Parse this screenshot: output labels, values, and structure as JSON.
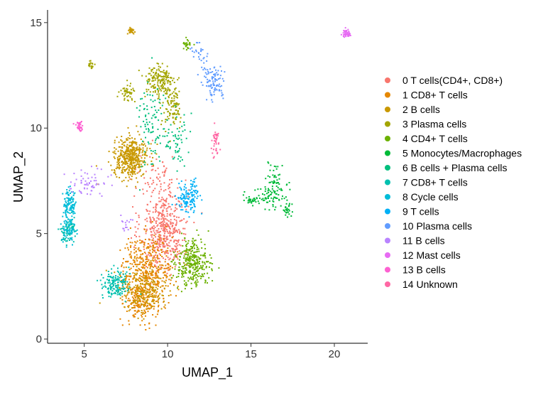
{
  "chart_data": {
    "type": "scatter",
    "title": "",
    "xlabel": "UMAP_1",
    "ylabel": "UMAP_2",
    "xlim": [
      2.8,
      22.0
    ],
    "ylim": [
      -0.2,
      15.6
    ],
    "xticks": [
      {
        "value": 5,
        "label": "5"
      },
      {
        "value": 10,
        "label": "10"
      },
      {
        "value": 15,
        "label": "15"
      },
      {
        "value": 20,
        "label": "20"
      }
    ],
    "yticks": [
      {
        "value": 0,
        "label": "0"
      },
      {
        "value": 5,
        "label": "5"
      },
      {
        "value": 10,
        "label": "10"
      },
      {
        "value": 15,
        "label": "15"
      }
    ],
    "grid": false,
    "legend_position": "right",
    "series": [
      {
        "name": "0 T cells(CD4+, CD8+)",
        "color": "#F8766D",
        "clusters": [
          {
            "cx": 9.8,
            "cy": 5.2,
            "sx": 0.7,
            "sy": 1.0,
            "n": 480
          },
          {
            "cx": 9.5,
            "cy": 7.6,
            "sx": 0.6,
            "sy": 0.6,
            "n": 60
          }
        ]
      },
      {
        "name": "1 CD8+ T cells",
        "color": "#E58700",
        "clusters": [
          {
            "cx": 8.8,
            "cy": 3.3,
            "sx": 0.8,
            "sy": 0.8,
            "n": 440
          },
          {
            "cx": 8.4,
            "cy": 1.8,
            "sx": 0.5,
            "sy": 0.5,
            "n": 200
          }
        ]
      },
      {
        "name": "2 B cells",
        "color": "#C99800",
        "clusters": [
          {
            "cx": 7.8,
            "cy": 8.6,
            "sx": 0.5,
            "sy": 0.45,
            "n": 440
          },
          {
            "cx": 8.5,
            "cy": 2.3,
            "sx": 0.8,
            "sy": 0.6,
            "n": 180
          },
          {
            "cx": 7.8,
            "cy": 14.6,
            "sx": 0.1,
            "sy": 0.08,
            "n": 25
          }
        ]
      },
      {
        "name": "3 Plasma cells",
        "color": "#A3A500",
        "clusters": [
          {
            "cx": 9.5,
            "cy": 12.2,
            "sx": 0.45,
            "sy": 0.4,
            "n": 170
          },
          {
            "cx": 10.3,
            "cy": 11.0,
            "sx": 0.3,
            "sy": 0.5,
            "n": 100
          },
          {
            "cx": 7.6,
            "cy": 11.7,
            "sx": 0.2,
            "sy": 0.2,
            "n": 45
          },
          {
            "cx": 5.4,
            "cy": 13.0,
            "sx": 0.1,
            "sy": 0.1,
            "n": 20
          }
        ]
      },
      {
        "name": "4 CD4+ T cells",
        "color": "#6BB100",
        "clusters": [
          {
            "cx": 11.5,
            "cy": 3.6,
            "sx": 0.5,
            "sy": 0.55,
            "n": 320
          },
          {
            "cx": 11.2,
            "cy": 14.0,
            "sx": 0.15,
            "sy": 0.12,
            "n": 25
          }
        ]
      },
      {
        "name": "5 Monocytes/Macrophages",
        "color": "#00BA38",
        "clusters": [
          {
            "cx": 16.4,
            "cy": 7.6,
            "sx": 0.2,
            "sy": 0.4,
            "n": 40
          },
          {
            "cx": 16.2,
            "cy": 6.8,
            "sx": 0.5,
            "sy": 0.3,
            "n": 80
          },
          {
            "cx": 17.1,
            "cy": 6.2,
            "sx": 0.15,
            "sy": 0.25,
            "n": 30
          },
          {
            "cx": 15.0,
            "cy": 6.6,
            "sx": 0.2,
            "sy": 0.1,
            "n": 25
          }
        ]
      },
      {
        "name": "6 B cells + Plasma cells",
        "color": "#00BF7D",
        "clusters": [
          {
            "cx": 9.0,
            "cy": 10.3,
            "sx": 0.4,
            "sy": 1.1,
            "n": 90
          },
          {
            "cx": 10.5,
            "cy": 9.5,
            "sx": 0.4,
            "sy": 0.6,
            "n": 60
          }
        ]
      },
      {
        "name": "7 CD8+ T cells",
        "color": "#00C0AF",
        "clusters": [
          {
            "cx": 6.9,
            "cy": 2.6,
            "sx": 0.4,
            "sy": 0.35,
            "n": 150
          },
          {
            "cx": 4.0,
            "cy": 5.1,
            "sx": 0.2,
            "sy": 0.3,
            "n": 80
          }
        ]
      },
      {
        "name": "8 Cycle cells",
        "color": "#00BCD8",
        "clusters": [
          {
            "cx": 4.1,
            "cy": 6.4,
            "sx": 0.2,
            "sy": 0.35,
            "n": 110
          },
          {
            "cx": 4.1,
            "cy": 5.2,
            "sx": 0.2,
            "sy": 0.3,
            "n": 50
          }
        ]
      },
      {
        "name": "9 T cells",
        "color": "#00B0F6",
        "clusters": [
          {
            "cx": 11.3,
            "cy": 6.7,
            "sx": 0.35,
            "sy": 0.35,
            "n": 130
          }
        ]
      },
      {
        "name": "10 Plasma cells",
        "color": "#619CFF",
        "clusters": [
          {
            "cx": 12.8,
            "cy": 12.2,
            "sx": 0.35,
            "sy": 0.4,
            "n": 100
          },
          {
            "cx": 12.0,
            "cy": 13.5,
            "sx": 0.3,
            "sy": 0.3,
            "n": 30
          }
        ]
      },
      {
        "name": "11 B cells",
        "color": "#B983FF",
        "clusters": [
          {
            "cx": 5.3,
            "cy": 7.4,
            "sx": 0.6,
            "sy": 0.3,
            "n": 60
          },
          {
            "cx": 7.5,
            "cy": 5.5,
            "sx": 0.2,
            "sy": 0.2,
            "n": 15
          }
        ]
      },
      {
        "name": "12 Mast cells",
        "color": "#E76BF3",
        "clusters": [
          {
            "cx": 20.7,
            "cy": 14.5,
            "sx": 0.12,
            "sy": 0.1,
            "n": 45
          }
        ]
      },
      {
        "name": "13 B cells",
        "color": "#FD61D1",
        "clusters": [
          {
            "cx": 4.7,
            "cy": 10.1,
            "sx": 0.12,
            "sy": 0.12,
            "n": 35
          }
        ]
      },
      {
        "name": "14 Unknown",
        "color": "#FF67A4",
        "clusters": [
          {
            "cx": 12.9,
            "cy": 9.4,
            "sx": 0.12,
            "sy": 0.3,
            "n": 40
          }
        ]
      }
    ]
  }
}
